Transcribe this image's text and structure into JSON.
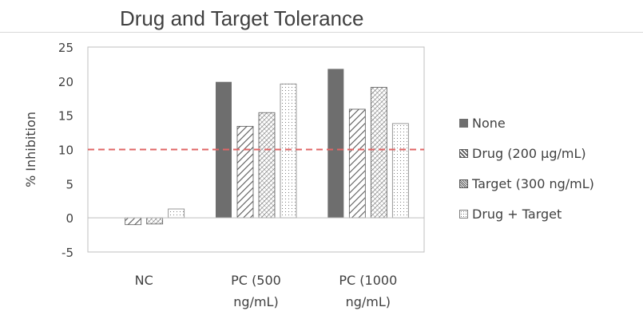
{
  "chart_data": {
    "type": "bar",
    "title": "Drug and Target Tolerance",
    "ylabel": "% Inhibition",
    "xlabel": "",
    "ylim": [
      -5,
      25
    ],
    "yticks": [
      -5,
      0,
      5,
      10,
      15,
      20,
      25
    ],
    "categories": [
      [
        "NC"
      ],
      [
        "PC (500",
        "ng/mL)"
      ],
      [
        "PC (1000",
        "ng/mL)"
      ]
    ],
    "series": [
      {
        "name": "None",
        "values": [
          0,
          19.9,
          21.8
        ],
        "pattern": "solid",
        "color": "#6e6e6e"
      },
      {
        "name": "Drug (200 µg/mL)",
        "values": [
          -1.0,
          13.4,
          15.9
        ],
        "pattern": "diagonal",
        "color": "#595959"
      },
      {
        "name": "Target (300 ng/mL)",
        "values": [
          -0.9,
          15.4,
          19.1
        ],
        "pattern": "crosshatch",
        "color": "#595959"
      },
      {
        "name": "Drug + Target",
        "values": [
          1.3,
          19.6,
          13.8
        ],
        "pattern": "dots",
        "color": "#7f7f7f"
      }
    ],
    "reference_line": {
      "value": 10,
      "style": "dashed",
      "color": "#e06666"
    },
    "grid": false,
    "legend_position": "right"
  }
}
